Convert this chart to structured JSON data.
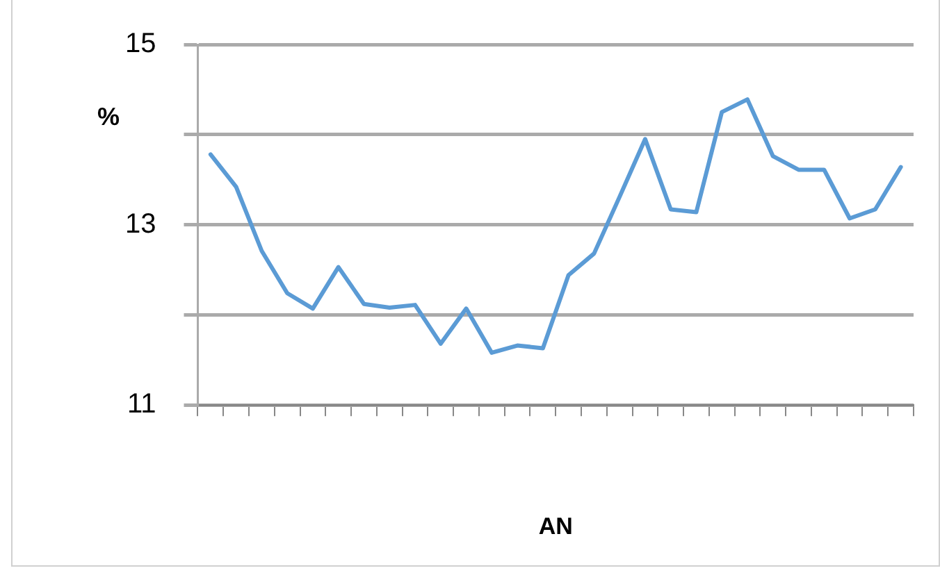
{
  "chart_data": {
    "type": "line",
    "xlabel": "AN",
    "ylabel": "%",
    "categories": [
      null,
      null,
      null,
      null,
      null,
      null,
      null,
      null,
      null,
      null,
      null,
      null,
      null,
      null,
      null,
      null,
      null,
      null,
      null,
      null,
      null,
      null,
      null,
      null,
      null,
      null,
      null,
      null
    ],
    "series": [
      {
        "color": "#5b9bd5",
        "values": [
          13.78,
          13.42,
          12.71,
          12.24,
          12.07,
          12.53,
          12.12,
          12.08,
          12.11,
          11.68,
          12.07,
          11.58,
          11.66,
          11.63,
          12.44,
          12.68,
          13.31,
          13.95,
          13.17,
          13.14,
          14.25,
          14.39,
          13.76,
          13.61,
          13.61,
          13.07,
          13.17,
          13.64
        ]
      }
    ],
    "ylim": [
      11,
      15
    ],
    "yticks": [
      15,
      {
        "value": 14,
        "label": null
      },
      13,
      {
        "value": 12,
        "label": null
      },
      11
    ],
    "grid": "y",
    "legend": false,
    "marker": "none",
    "line_style": "solid",
    "tick_labels": "y"
  }
}
